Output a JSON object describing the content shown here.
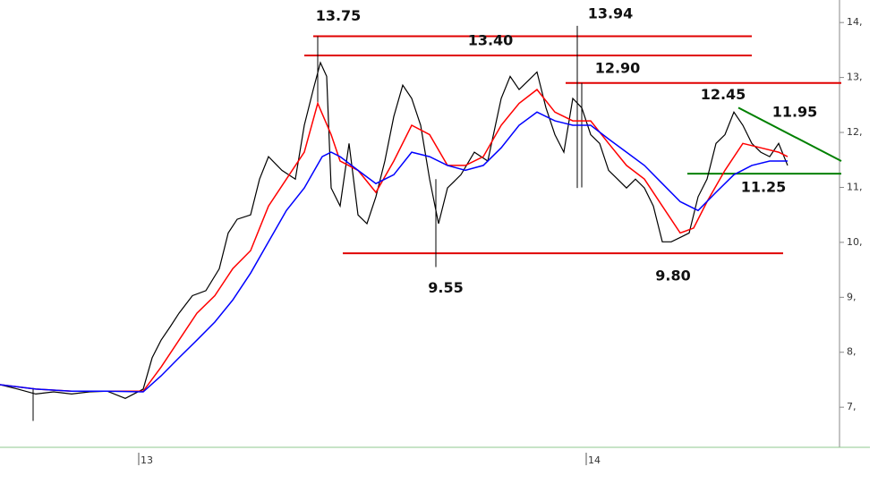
{
  "chart_data": {
    "type": "line",
    "xlim": [
      0,
      940
    ],
    "ylim": [
      6.27,
      14.41
    ],
    "xticks": [
      {
        "value": 155,
        "label": "13"
      },
      {
        "value": 655,
        "label": "14"
      }
    ],
    "yticks": [
      {
        "value": 7,
        "label": "7,"
      },
      {
        "value": 8,
        "label": "8,"
      },
      {
        "value": 9,
        "label": "9,"
      },
      {
        "value": 10,
        "label": "10,"
      },
      {
        "value": 11,
        "label": "11,"
      },
      {
        "value": 12,
        "label": "12,"
      },
      {
        "value": 13,
        "label": "13,"
      },
      {
        "value": 14,
        "label": "14,"
      }
    ],
    "series": [
      {
        "color": "#000000",
        "x": [
          0,
          20,
          40,
          60,
          80,
          100,
          120,
          140,
          160,
          170,
          180,
          190,
          200,
          215,
          230,
          245,
          255,
          265,
          280,
          290,
          300,
          315,
          330,
          340,
          350,
          358,
          365,
          370,
          380,
          390,
          400,
          410,
          420,
          430,
          440,
          450,
          460,
          470,
          480,
          490,
          500,
          515,
          530,
          545,
          560,
          570,
          580,
          590,
          600,
          610,
          620,
          630,
          640,
          650,
          660,
          670,
          680,
          690,
          700,
          710,
          720,
          730,
          740,
          750,
          760,
          770,
          780,
          790,
          800,
          810,
          820,
          830,
          840,
          850,
          860,
          870,
          880
        ],
        "values": [
          7.41,
          7.33,
          7.24,
          7.28,
          7.24,
          7.28,
          7.29,
          7.16,
          7.33,
          7.9,
          8.22,
          8.46,
          8.71,
          9.03,
          9.12,
          9.52,
          10.17,
          10.42,
          10.5,
          11.15,
          11.56,
          11.31,
          11.15,
          12.13,
          12.78,
          13.27,
          13.02,
          10.99,
          10.66,
          11.8,
          10.5,
          10.34,
          10.83,
          11.48,
          12.29,
          12.86,
          12.62,
          12.13,
          11.15,
          10.34,
          10.99,
          11.23,
          11.64,
          11.48,
          12.62,
          13.02,
          12.78,
          12.94,
          13.1,
          12.45,
          11.96,
          11.64,
          12.62,
          12.45,
          11.96,
          11.8,
          11.31,
          11.15,
          10.99,
          11.15,
          10.99,
          10.66,
          10.01,
          10.01,
          10.09,
          10.17,
          10.83,
          11.15,
          11.8,
          11.96,
          12.37,
          12.13,
          11.8,
          11.64,
          11.56,
          11.8,
          11.4
        ]
      },
      {
        "color": "#ff0000",
        "x": [
          0,
          40,
          80,
          120,
          160,
          180,
          200,
          220,
          240,
          260,
          280,
          300,
          320,
          340,
          355,
          370,
          380,
          400,
          420,
          440,
          460,
          480,
          500,
          520,
          540,
          560,
          580,
          600,
          620,
          640,
          660,
          680,
          700,
          720,
          740,
          760,
          775,
          790,
          810,
          830,
          850,
          870,
          880
        ],
        "values": [
          7.41,
          7.33,
          7.29,
          7.29,
          7.29,
          7.73,
          8.22,
          8.71,
          9.03,
          9.52,
          9.85,
          10.66,
          11.15,
          11.64,
          12.53,
          11.96,
          11.48,
          11.31,
          10.91,
          11.48,
          12.13,
          11.96,
          11.4,
          11.4,
          11.56,
          12.13,
          12.53,
          12.78,
          12.37,
          12.21,
          12.21,
          11.8,
          11.4,
          11.15,
          10.66,
          10.17,
          10.26,
          10.74,
          11.31,
          11.8,
          11.72,
          11.64,
          11.56
        ]
      },
      {
        "color": "#0000ff",
        "x": [
          0,
          40,
          80,
          120,
          160,
          180,
          200,
          220,
          240,
          260,
          280,
          300,
          320,
          340,
          360,
          370,
          380,
          400,
          420,
          440,
          460,
          480,
          500,
          520,
          540,
          560,
          580,
          600,
          620,
          640,
          660,
          680,
          700,
          720,
          740,
          760,
          780,
          800,
          820,
          840,
          860,
          880
        ],
        "values": [
          7.41,
          7.33,
          7.29,
          7.29,
          7.28,
          7.57,
          7.9,
          8.22,
          8.55,
          8.95,
          9.44,
          10.01,
          10.58,
          10.99,
          11.56,
          11.64,
          11.56,
          11.31,
          11.07,
          11.23,
          11.64,
          11.56,
          11.4,
          11.31,
          11.4,
          11.72,
          12.13,
          12.37,
          12.21,
          12.13,
          12.13,
          11.88,
          11.64,
          11.4,
          11.07,
          10.74,
          10.58,
          10.91,
          11.23,
          11.4,
          11.48,
          11.48
        ]
      }
    ],
    "wicks": [
      {
        "x": 645,
        "low": 10.99,
        "high": 13.94
      },
      {
        "x": 487,
        "low": 9.55,
        "high": 11.15
      },
      {
        "x": 355,
        "low": 12.5,
        "high": 13.75
      },
      {
        "x": 37,
        "low": 6.75,
        "high": 7.35
      },
      {
        "x": 650,
        "low": 11.0,
        "high": 12.9
      }
    ],
    "levels": [
      {
        "value": 13.75,
        "start": 350,
        "end": 840,
        "color": "#e00000"
      },
      {
        "value": 13.4,
        "start": 340,
        "end": 840,
        "color": "#e00000"
      },
      {
        "value": 12.9,
        "start": 632,
        "end": 940,
        "color": "#e00000"
      },
      {
        "value": 9.8,
        "start": 383,
        "end": 875,
        "color": "#e00000"
      },
      {
        "value": 11.25,
        "start": 768,
        "end": 940,
        "color": "#008000"
      }
    ],
    "trendline": {
      "x": [
        825,
        940
      ],
      "values": [
        12.45,
        11.48
      ],
      "color": "#008000"
    },
    "annotations": [
      {
        "label": "13.75",
        "value": 13.75,
        "x": 378
      },
      {
        "label": "13.40",
        "value": 13.4,
        "x": 548
      },
      {
        "label": "13.94",
        "value": 13.94,
        "x": 682
      },
      {
        "label": "12.90",
        "value": 12.9,
        "x": 690
      },
      {
        "label": "12.45",
        "value": 12.45,
        "x": 808
      },
      {
        "label": "11.95",
        "value": 11.95,
        "x": 888
      },
      {
        "label": "11.25",
        "value": 11.25,
        "x": 853
      },
      {
        "label": "9.55",
        "value": 9.55,
        "x": 498
      },
      {
        "label": "9.80",
        "value": 9.8,
        "x": 752
      }
    ]
  }
}
